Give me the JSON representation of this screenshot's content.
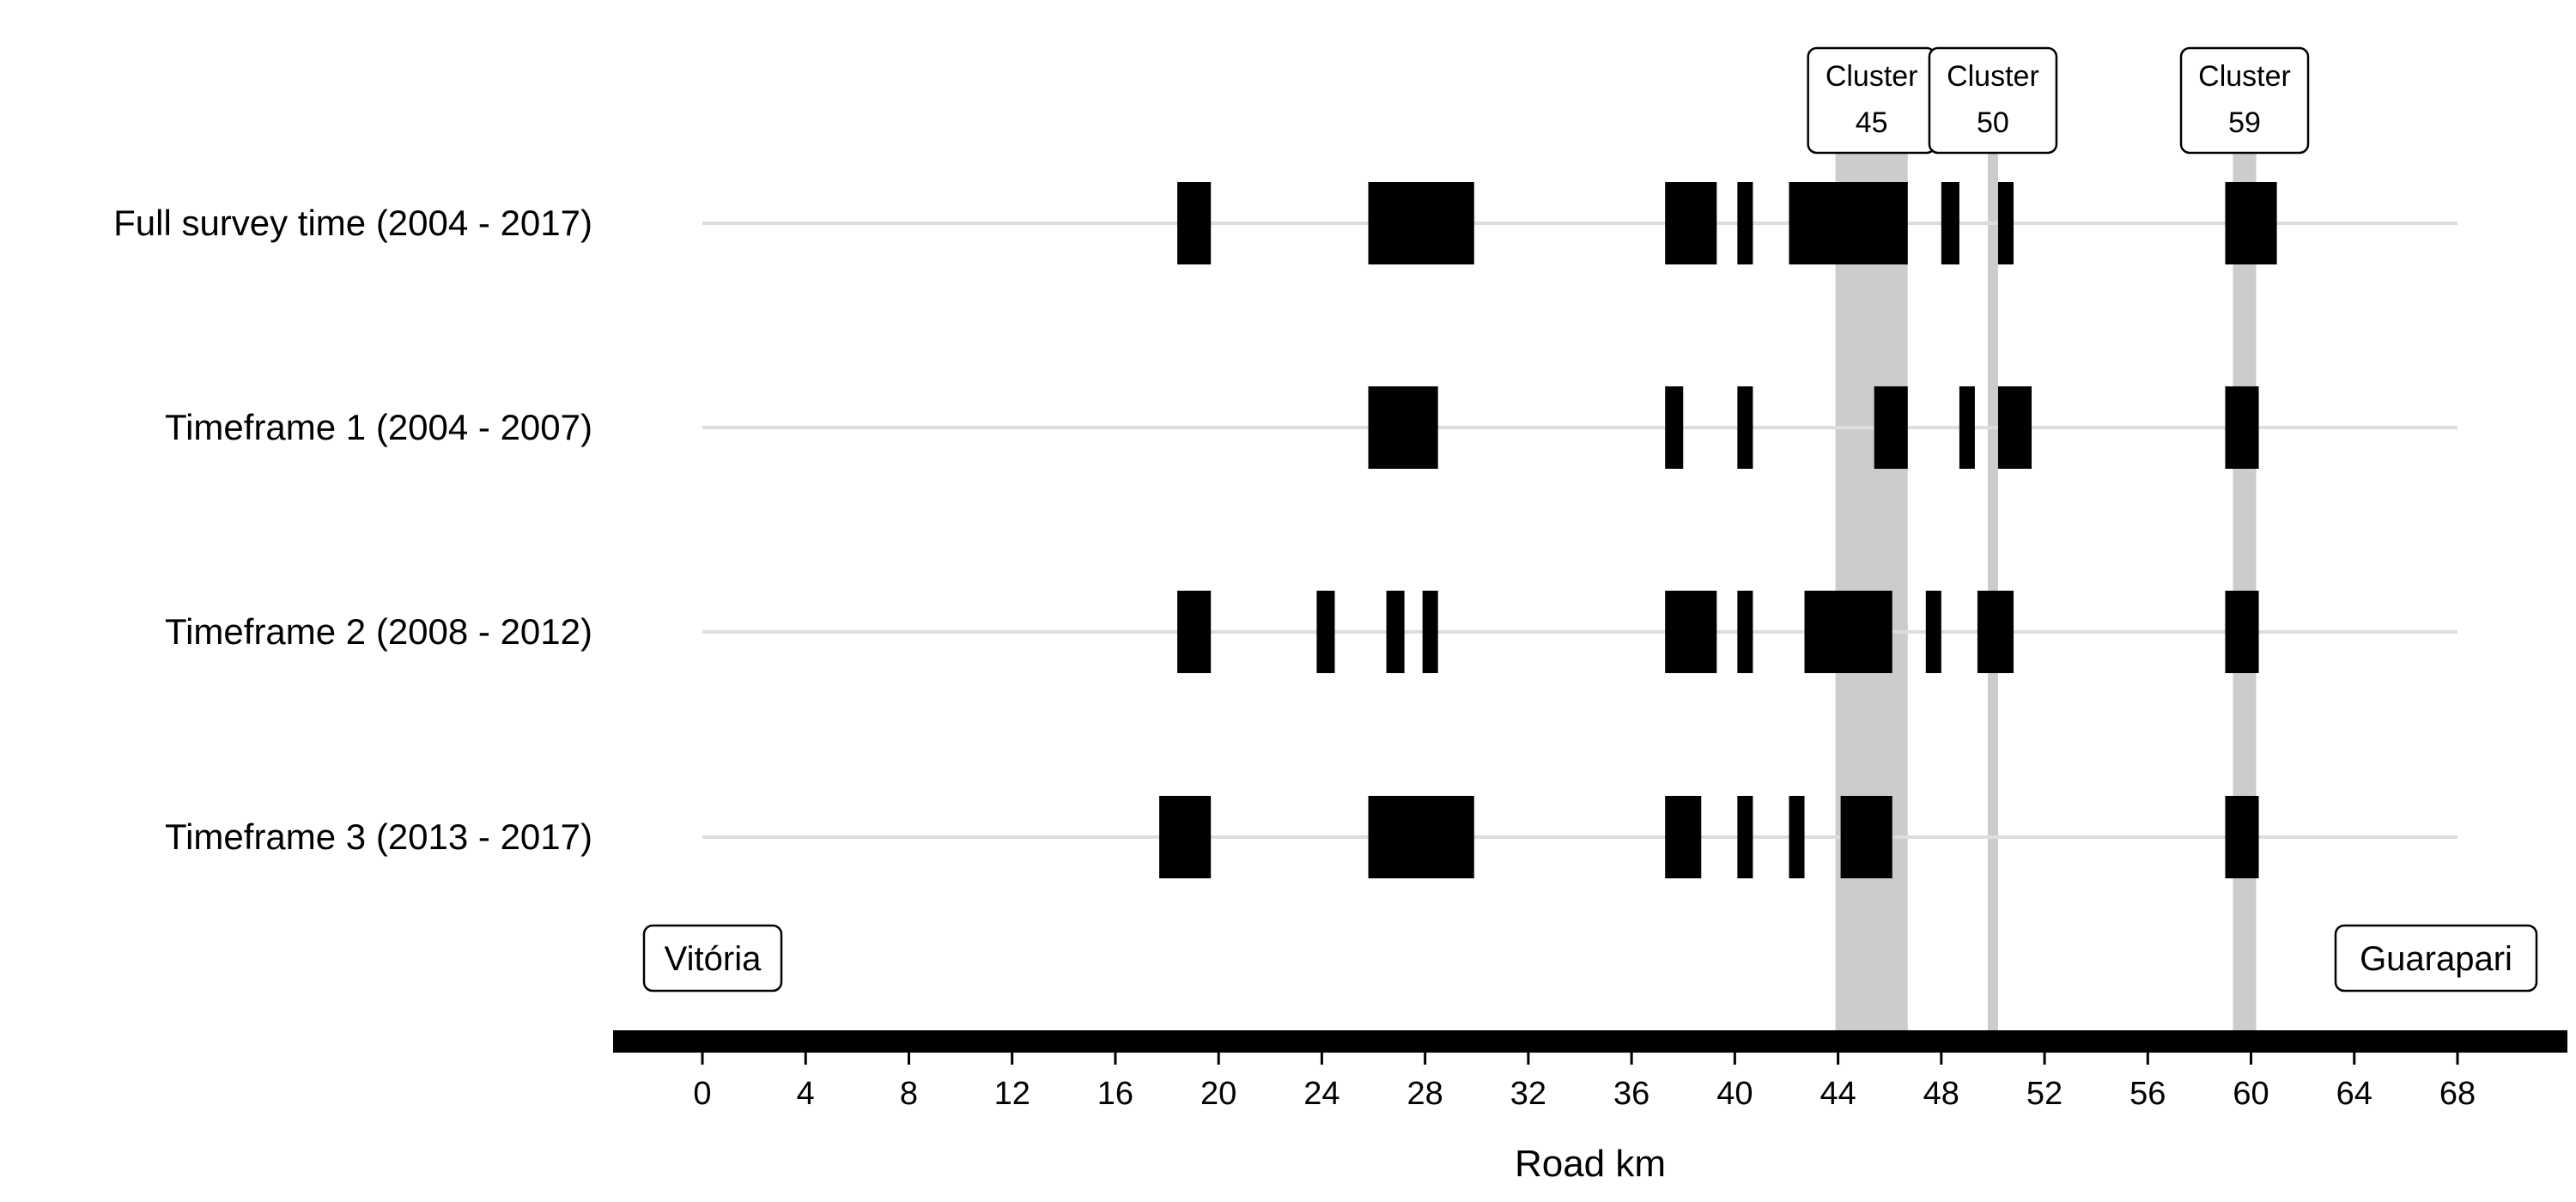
{
  "chart_data": {
    "type": "timeline",
    "xlabel": "Road km",
    "xlim": [
      0,
      68
    ],
    "x_ticks": [
      0,
      4,
      8,
      12,
      16,
      20,
      24,
      28,
      32,
      36,
      40,
      44,
      48,
      52,
      56,
      60,
      64,
      68
    ],
    "rows": [
      {
        "label": "Full survey time (2004 - 2017)",
        "segments": [
          [
            18.4,
            19.7
          ],
          [
            25.8,
            29.9
          ],
          [
            37.3,
            39.3
          ],
          [
            40.1,
            40.7
          ],
          [
            42.1,
            46.7
          ],
          [
            48.0,
            48.7
          ],
          [
            50.2,
            50.8
          ],
          [
            59.0,
            61.0
          ]
        ]
      },
      {
        "label": "Timeframe 1 (2004 - 2007)",
        "segments": [
          [
            25.8,
            28.5
          ],
          [
            37.3,
            38.0
          ],
          [
            40.1,
            40.7
          ],
          [
            45.4,
            46.7
          ],
          [
            48.7,
            49.3
          ],
          [
            50.2,
            51.5
          ],
          [
            59.0,
            60.3
          ]
        ]
      },
      {
        "label": "Timeframe 2 (2008 - 2012)",
        "segments": [
          [
            18.4,
            19.7
          ],
          [
            23.8,
            24.5
          ],
          [
            26.5,
            27.2
          ],
          [
            27.9,
            28.5
          ],
          [
            37.3,
            39.3
          ],
          [
            40.1,
            40.7
          ],
          [
            42.7,
            46.1
          ],
          [
            47.4,
            48.0
          ],
          [
            49.4,
            50.8
          ],
          [
            59.0,
            60.3
          ]
        ]
      },
      {
        "label": "Timeframe 3 (2013 - 2017)",
        "segments": [
          [
            17.7,
            19.7
          ],
          [
            25.8,
            29.9
          ],
          [
            37.3,
            38.7
          ],
          [
            40.1,
            40.7
          ],
          [
            42.1,
            42.7
          ],
          [
            44.1,
            46.1
          ],
          [
            59.0,
            60.3
          ]
        ]
      }
    ],
    "clusters": [
      {
        "label": "Cluster\n45",
        "line1": "Cluster",
        "line2": "45",
        "range": [
          43.9,
          46.7
        ]
      },
      {
        "label": "Cluster\n50",
        "line1": "Cluster",
        "line2": "50",
        "range": [
          49.8,
          50.2
        ]
      },
      {
        "label": "Cluster\n59",
        "line1": "Cluster",
        "line2": "59",
        "range": [
          59.3,
          60.2
        ]
      }
    ],
    "endpoints": {
      "start": "Vitória",
      "end": "Guarapari"
    },
    "colors": {
      "segment": "#000000",
      "cluster_band": "#cccccc",
      "track_line": "#dddddd",
      "road": "#000000"
    }
  }
}
